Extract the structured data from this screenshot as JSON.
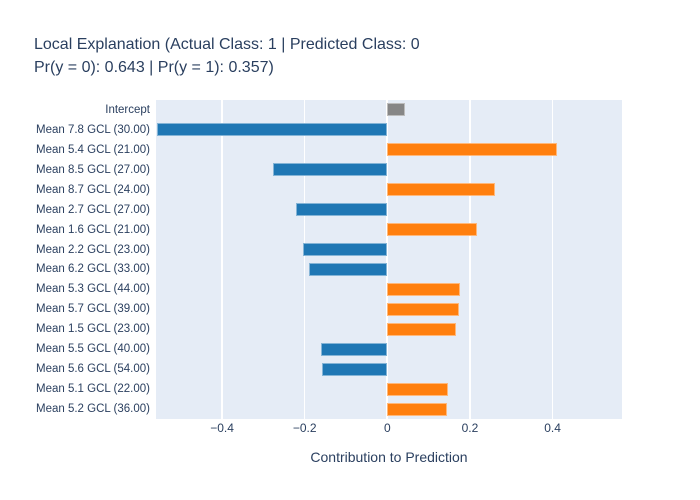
{
  "title": {
    "line1": "Local Explanation (Actual Class: 1 | Predicted Class: 0",
    "line2": "Pr(y = 0): 0.643 | Pr(y = 1): 0.357)"
  },
  "chart_data": {
    "type": "bar",
    "orientation": "horizontal",
    "title": "Local Explanation (Actual Class: 1 | Predicted Class: 0 Pr(y = 0): 0.643 | Pr(y = 1): 0.357)",
    "xlabel": "Contribution to Prediction",
    "ylabel": "",
    "categories": [
      "Intercept",
      "Mean 7.8 GCL (30.00)",
      "Mean 5.4 GCL (21.00)",
      "Mean 8.5 GCL (27.00)",
      "Mean 8.7 GCL (24.00)",
      "Mean 2.7 GCL (27.00)",
      "Mean 1.6 GCL (21.00)",
      "Mean 2.2 GCL (23.00)",
      "Mean 6.2 GCL (33.00)",
      "Mean 5.3 GCL (44.00)",
      "Mean 5.7 GCL (39.00)",
      "Mean 1.5 GCL (23.00)",
      "Mean 5.5 GCL (40.00)",
      "Mean 5.6 GCL (54.00)",
      "Mean 5.1 GCL (22.00)",
      "Mean 5.2 GCL (36.00)"
    ],
    "values": [
      0.042,
      -0.558,
      0.41,
      -0.276,
      0.26,
      -0.222,
      0.216,
      -0.203,
      -0.19,
      0.176,
      0.174,
      0.166,
      -0.16,
      -0.157,
      0.146,
      0.144
    ],
    "x_ticks": [
      -0.4,
      -0.2,
      0,
      0.2,
      0.4
    ],
    "x_tick_labels": [
      "−0.4",
      "−0.2",
      "0",
      "0.2",
      "0.4"
    ],
    "xlim": [
      -0.56,
      0.568
    ],
    "grid": true,
    "legend": "none",
    "colors": {
      "positive": "#ff7f0e",
      "negative": "#1f77b4",
      "intercept": "#868686",
      "plot_background": "#e5ecf6",
      "gridline": "#ffffff",
      "text": "#2a3f5f"
    }
  }
}
